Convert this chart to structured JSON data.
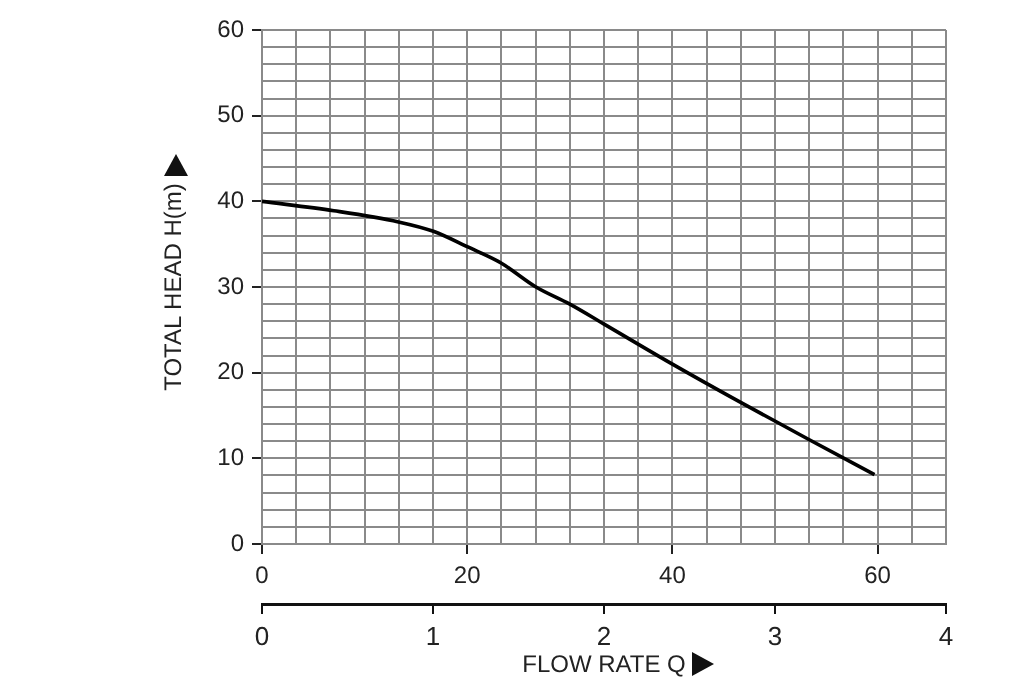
{
  "chart_data": {
    "type": "line",
    "ylabel": "TOTAL HEAD H(m)",
    "x2label": "FLOW RATE Q",
    "x": [
      0,
      7,
      13.3,
      16.7,
      20,
      23.3,
      26.7,
      30,
      33.3,
      40,
      46.7,
      53.3,
      59.7
    ],
    "series": [
      {
        "color": "#000000",
        "values": [
          40,
          38.9,
          37.6,
          36.5,
          34.7,
          32.8,
          30,
          28,
          25.7,
          21,
          16.5,
          12.2,
          8.1
        ]
      }
    ],
    "xlim": [
      0,
      66.667
    ],
    "xticks": [
      0,
      {
        "value": 3.333,
        "label": null
      },
      {
        "value": 6.667,
        "label": null
      },
      {
        "value": 10,
        "label": null
      },
      {
        "value": 13.333,
        "label": null
      },
      {
        "value": 16.667,
        "label": null
      },
      20,
      {
        "value": 23.333,
        "label": null
      },
      {
        "value": 26.667,
        "label": null
      },
      {
        "value": 30,
        "label": null
      },
      {
        "value": 33.333,
        "label": null
      },
      {
        "value": 36.667,
        "label": null
      },
      40,
      {
        "value": 43.333,
        "label": null
      },
      {
        "value": 46.667,
        "label": null
      },
      {
        "value": 50,
        "label": null
      },
      {
        "value": 53.333,
        "label": null
      },
      {
        "value": 56.667,
        "label": null
      },
      60,
      {
        "value": 63.333,
        "label": null
      },
      {
        "value": 66.667,
        "label": null
      }
    ],
    "x2lim": [
      0,
      4
    ],
    "x2ticks": [
      0,
      1,
      2,
      3,
      4
    ],
    "ylim": [
      0,
      60
    ],
    "yticks": [
      0,
      {
        "value": 2,
        "label": null
      },
      {
        "value": 4,
        "label": null
      },
      {
        "value": 6,
        "label": null
      },
      {
        "value": 8,
        "label": null
      },
      10,
      {
        "value": 12,
        "label": null
      },
      {
        "value": 14,
        "label": null
      },
      {
        "value": 16,
        "label": null
      },
      {
        "value": 18,
        "label": null
      },
      20,
      {
        "value": 22,
        "label": null
      },
      {
        "value": 24,
        "label": null
      },
      {
        "value": 26,
        "label": null
      },
      {
        "value": 28,
        "label": null
      },
      30,
      {
        "value": 32,
        "label": null
      },
      {
        "value": 34,
        "label": null
      },
      {
        "value": 36,
        "label": null
      },
      {
        "value": 38,
        "label": null
      },
      40,
      {
        "value": 42,
        "label": null
      },
      {
        "value": 44,
        "label": null
      },
      {
        "value": 46,
        "label": null
      },
      {
        "value": 48,
        "label": null
      },
      50,
      {
        "value": 52,
        "label": null
      },
      {
        "value": 54,
        "label": null
      },
      {
        "value": 56,
        "label": null
      },
      {
        "value": 58,
        "label": null
      },
      60
    ],
    "grid": true,
    "legend": false,
    "marker": "none",
    "line_style": "solid"
  }
}
